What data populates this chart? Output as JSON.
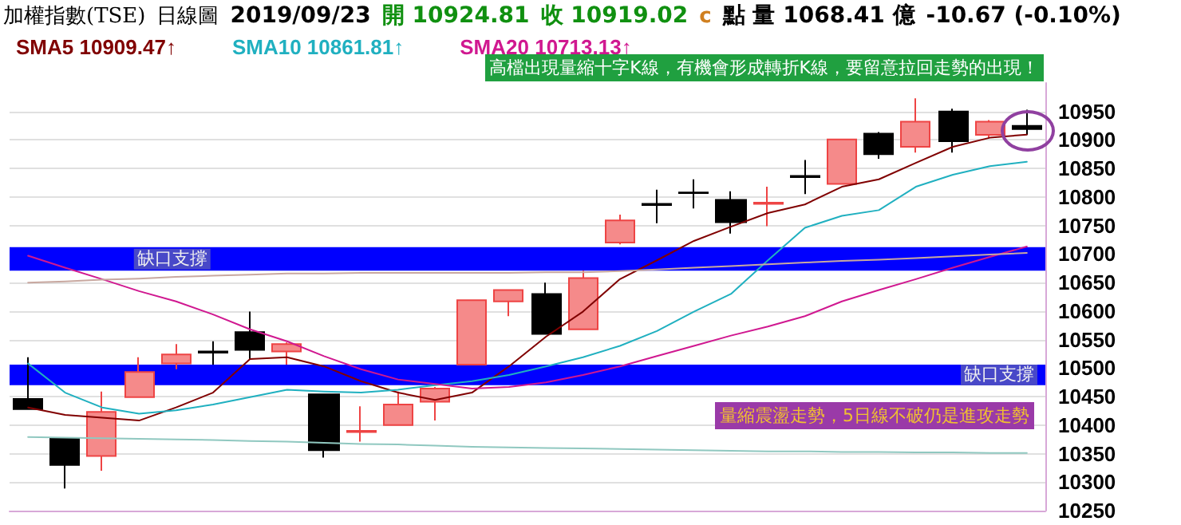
{
  "chart_data": {
    "type": "candlestick",
    "title": "加權指數(TSE)",
    "subtitle": "日線圖",
    "annotations": [
      "2019/09/23",
      "開 10924.81",
      "收 10919.02",
      "c",
      "點 量 1068.41 億",
      "-10.67 (-0.10%)",
      "高檔出現量縮十字K線，有機會形成轉折K線，要留意拉回走勢的出現！",
      "量縮震盪走勢，5日線不破仍是進攻走勢"
    ],
    "categories": [
      null,
      null,
      null,
      null,
      null,
      null,
      null,
      null,
      null,
      null,
      null,
      null,
      null,
      null,
      null,
      null,
      null,
      null,
      null,
      null,
      null,
      null,
      null,
      null,
      null,
      null,
      null,
      null
    ],
    "ohlc": [
      [
        10446,
        10519,
        10428,
        10428
      ],
      [
        10377,
        10377,
        10289,
        10330
      ],
      [
        10346,
        10459,
        10320,
        10423
      ],
      [
        10449,
        10519,
        10449,
        10493
      ],
      [
        10508,
        10542,
        10498,
        10524
      ],
      [
        10529,
        10547,
        10506,
        10527
      ],
      [
        10563,
        10599,
        10516,
        10532
      ],
      [
        10529,
        10545,
        10506,
        10542
      ],
      [
        10454,
        10454,
        10343,
        10356
      ],
      [
        10388,
        10433,
        10371,
        10390
      ],
      [
        10400,
        10459,
        10400,
        10436
      ],
      [
        10441,
        10467,
        10408,
        10464
      ],
      [
        10506,
        10619,
        10506,
        10619
      ],
      [
        10617,
        10637,
        10591,
        10637
      ],
      [
        10630,
        10650,
        10560,
        10560
      ],
      [
        10568,
        10671,
        10568,
        10658
      ],
      [
        10720,
        10769,
        10717,
        10759
      ],
      [
        10788,
        10813,
        10754,
        10786
      ],
      [
        10808,
        10831,
        10780,
        10807
      ],
      [
        10795,
        10810,
        10736,
        10756
      ],
      [
        10788,
        10818,
        10749,
        10790
      ],
      [
        10837,
        10865,
        10805,
        10835
      ],
      [
        10823,
        10901,
        10823,
        10901
      ],
      [
        10911,
        10914,
        10867,
        10875
      ],
      [
        10888,
        10973,
        10878,
        10932
      ],
      [
        10950,
        10955,
        10878,
        10898
      ],
      [
        10909,
        10935,
        10904,
        10932
      ],
      [
        10924.81,
        10953,
        10909,
        10919.02
      ]
    ],
    "series": [
      {
        "type": "line",
        "name": "SMA5 10909.47↑",
        "color": "#800000",
        "values": [
          10431,
          10418,
          10413,
          10408,
          10431,
          10457,
          10516,
          10519,
          10503,
          10477,
          10457,
          10444,
          10457,
          10503,
          10555,
          10599,
          10656,
          10689,
          10723,
          10748,
          10772,
          10787,
          10818,
          10831,
          10860,
          10888,
          10904,
          10909.47
        ]
      },
      {
        "type": "line",
        "name": "SMA10 10861.81↑",
        "color": "#20b0c0",
        "values": [
          10508,
          10457,
          10431,
          10420,
          10426,
          10436,
          10449,
          10462,
          10459,
          10457,
          10462,
          10470,
          10477,
          10488,
          10503,
          10519,
          10539,
          10565,
          10599,
          10630,
          10689,
          10746,
          10767,
          10777,
          10818,
          10839,
          10854,
          10861.81
        ]
      },
      {
        "type": "line",
        "name": "SMA20 10713.13↑",
        "color": "#d01890",
        "values": [
          10697,
          10676,
          10656,
          10635,
          10617,
          10594,
          10568,
          10547,
          10521,
          10498,
          10480,
          10472,
          10464,
          10467,
          10475,
          10488,
          10503,
          10521,
          10539,
          10557,
          10573,
          10591,
          10617,
          10637,
          10656,
          10676,
          10695,
          10713.13
        ]
      },
      {
        "type": "line",
        "color": "#c8a8a0",
        "values": [
          10650,
          10652,
          10655,
          10657,
          10660,
          10662,
          10664,
          10666,
          10666,
          10667,
          10667,
          10667,
          10667,
          10667,
          10668,
          10668,
          10670,
          10673,
          10676,
          10679,
          10682,
          10685,
          10688,
          10690,
          10693,
          10696,
          10699,
          10702
        ]
      },
      {
        "type": "line",
        "color": "#90c8c0",
        "values": [
          10379,
          10378,
          10377,
          10376,
          10375,
          10374,
          10372,
          10371,
          10369,
          10367,
          10366,
          10364,
          10362,
          10361,
          10360,
          10359,
          10358,
          10357,
          10356,
          10355,
          10354,
          10354,
          10353,
          10353,
          10352,
          10352,
          10351,
          10351
        ]
      }
    ],
    "bands": [
      {
        "axis": "y",
        "from": 10671,
        "to": 10712,
        "label": "缺口支撐",
        "color": "#0000ff"
      },
      {
        "axis": "y",
        "from": 10470,
        "to": 10506,
        "label": "缺口支撐",
        "color": "#0000ff"
      }
    ],
    "ylim": [
      10250,
      11000
    ],
    "yticks": [
      10250,
      10300,
      10350,
      10400,
      10450,
      10500,
      10550,
      10600,
      10650,
      10700,
      10750,
      10800,
      10850,
      10900,
      10950
    ],
    "grid": "y",
    "tick_labels": "y",
    "legend": "top left",
    "marker": "none",
    "line_style": "solid"
  }
}
